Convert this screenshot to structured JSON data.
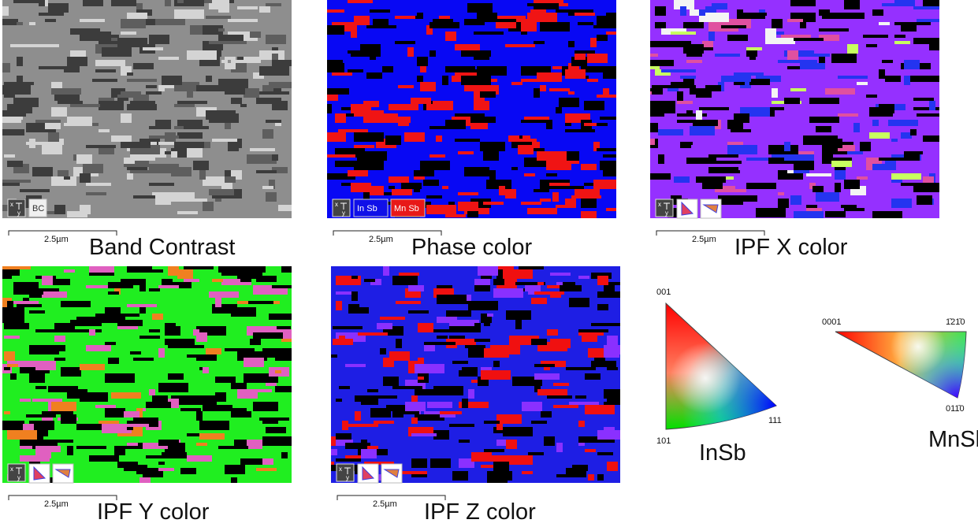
{
  "panels": [
    {
      "title": "Band Contrast",
      "scale": "2.5µm",
      "badges": [
        "BC"
      ]
    },
    {
      "title": "Phase color",
      "scale": "2.5µm",
      "badges": [
        "In Sb",
        "Mn Sb"
      ]
    },
    {
      "title": "IPF X color",
      "scale": "2.5µm"
    },
    {
      "title": "IPF Y color",
      "scale": "2.5µm"
    },
    {
      "title": "IPF Z color",
      "scale": "2.5µm"
    }
  ],
  "axis_icon": {
    "x": "x",
    "y": "y"
  },
  "legends": [
    {
      "name": "InSb",
      "corners": [
        "001",
        "101",
        "111"
      ]
    },
    {
      "name": "MnSb",
      "corners": [
        "0001",
        "1̄21̄0",
        "011̄0"
      ]
    }
  ]
}
